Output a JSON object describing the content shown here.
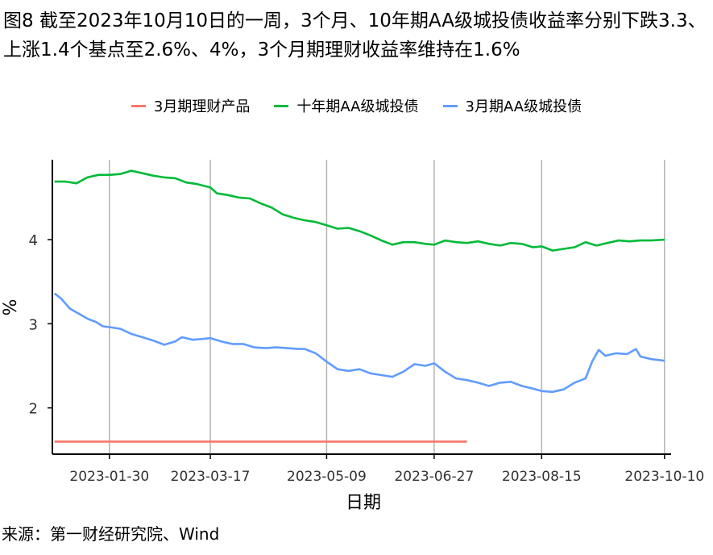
{
  "header": {
    "figure_label": "图8",
    "title": "截至2023年10月10日的一周，3个月、10年期AA级城投债收益率分别下跌3.3、 上涨1.4个基点至2.6%、4%，3个月期理财收益率维持在1.6%"
  },
  "footer": {
    "source": "来源：第一财经研究院、Wind"
  },
  "chart_data": {
    "type": "line",
    "title": "截至2023年10月10日的一周，3个月、10年期AA级城投债收益率分别下跌3.3、 上涨1.4个基点至2.6%、4%，3个月期理财收益率维持在1.6%",
    "xlabel": "日期",
    "ylabel": "%",
    "x_ticks": [
      "2023-01-30",
      "2023-03-17",
      "2023-05-09",
      "2023-06-27",
      "2023-08-15",
      "2023-10-10"
    ],
    "y_ticks": [
      2,
      3,
      4
    ],
    "xlim": [
      "2023-01-04",
      "2023-10-13"
    ],
    "ylim": [
      1.45,
      4.95
    ],
    "grid": "vertical at x ticks",
    "legend": "top",
    "series": [
      {
        "name": "3月期理财产品",
        "color": "#f8766d",
        "points": [
          [
            "2023-01-05",
            1.6
          ],
          [
            "2023-07-12",
            1.6
          ]
        ]
      },
      {
        "name": "十年期AA级城投债",
        "color": "#00ba38",
        "points": [
          [
            "2023-01-05",
            4.69
          ],
          [
            "2023-01-10",
            4.69
          ],
          [
            "2023-01-15",
            4.67
          ],
          [
            "2023-01-20",
            4.74
          ],
          [
            "2023-01-25",
            4.77
          ],
          [
            "2023-01-30",
            4.77
          ],
          [
            "2023-02-04",
            4.78
          ],
          [
            "2023-02-09",
            4.82
          ],
          [
            "2023-02-14",
            4.79
          ],
          [
            "2023-02-19",
            4.76
          ],
          [
            "2023-02-24",
            4.74
          ],
          [
            "2023-03-01",
            4.73
          ],
          [
            "2023-03-06",
            4.68
          ],
          [
            "2023-03-11",
            4.66
          ],
          [
            "2023-03-17",
            4.62
          ],
          [
            "2023-03-20",
            4.55
          ],
          [
            "2023-03-25",
            4.53
          ],
          [
            "2023-03-30",
            4.5
          ],
          [
            "2023-04-04",
            4.49
          ],
          [
            "2023-04-09",
            4.43
          ],
          [
            "2023-04-14",
            4.38
          ],
          [
            "2023-04-19",
            4.3
          ],
          [
            "2023-04-24",
            4.26
          ],
          [
            "2023-04-29",
            4.23
          ],
          [
            "2023-05-04",
            4.21
          ],
          [
            "2023-05-09",
            4.17
          ],
          [
            "2023-05-14",
            4.13
          ],
          [
            "2023-05-19",
            4.14
          ],
          [
            "2023-05-24",
            4.1
          ],
          [
            "2023-05-29",
            4.05
          ],
          [
            "2023-06-03",
            3.99
          ],
          [
            "2023-06-08",
            3.94
          ],
          [
            "2023-06-13",
            3.97
          ],
          [
            "2023-06-18",
            3.97
          ],
          [
            "2023-06-23",
            3.95
          ],
          [
            "2023-06-27",
            3.94
          ],
          [
            "2023-07-02",
            3.99
          ],
          [
            "2023-07-07",
            3.97
          ],
          [
            "2023-07-12",
            3.96
          ],
          [
            "2023-07-17",
            3.98
          ],
          [
            "2023-07-22",
            3.95
          ],
          [
            "2023-07-27",
            3.93
          ],
          [
            "2023-08-01",
            3.96
          ],
          [
            "2023-08-06",
            3.95
          ],
          [
            "2023-08-11",
            3.91
          ],
          [
            "2023-08-15",
            3.92
          ],
          [
            "2023-08-20",
            3.87
          ],
          [
            "2023-08-25",
            3.89
          ],
          [
            "2023-08-30",
            3.91
          ],
          [
            "2023-09-04",
            3.97
          ],
          [
            "2023-09-09",
            3.93
          ],
          [
            "2023-09-14",
            3.96
          ],
          [
            "2023-09-19",
            3.99
          ],
          [
            "2023-09-24",
            3.98
          ],
          [
            "2023-09-29",
            3.99
          ],
          [
            "2023-10-04",
            3.99
          ],
          [
            "2023-10-10",
            4.0
          ]
        ]
      },
      {
        "name": "3月期AA级城投债",
        "color": "#619cff",
        "points": [
          [
            "2023-01-05",
            3.36
          ],
          [
            "2023-01-08",
            3.3
          ],
          [
            "2023-01-12",
            3.18
          ],
          [
            "2023-01-16",
            3.12
          ],
          [
            "2023-01-20",
            3.06
          ],
          [
            "2023-01-24",
            3.02
          ],
          [
            "2023-01-27",
            2.97
          ],
          [
            "2023-01-30",
            2.96
          ],
          [
            "2023-02-04",
            2.94
          ],
          [
            "2023-02-09",
            2.88
          ],
          [
            "2023-02-14",
            2.84
          ],
          [
            "2023-02-19",
            2.8
          ],
          [
            "2023-02-24",
            2.75
          ],
          [
            "2023-03-01",
            2.79
          ],
          [
            "2023-03-04",
            2.84
          ],
          [
            "2023-03-09",
            2.81
          ],
          [
            "2023-03-14",
            2.82
          ],
          [
            "2023-03-17",
            2.83
          ],
          [
            "2023-03-22",
            2.79
          ],
          [
            "2023-03-27",
            2.76
          ],
          [
            "2023-04-01",
            2.76
          ],
          [
            "2023-04-06",
            2.72
          ],
          [
            "2023-04-11",
            2.71
          ],
          [
            "2023-04-16",
            2.72
          ],
          [
            "2023-04-21",
            2.71
          ],
          [
            "2023-04-26",
            2.7
          ],
          [
            "2023-04-29",
            2.7
          ],
          [
            "2023-05-04",
            2.65
          ],
          [
            "2023-05-09",
            2.55
          ],
          [
            "2023-05-14",
            2.46
          ],
          [
            "2023-05-19",
            2.44
          ],
          [
            "2023-05-24",
            2.46
          ],
          [
            "2023-05-29",
            2.41
          ],
          [
            "2023-06-03",
            2.39
          ],
          [
            "2023-06-08",
            2.37
          ],
          [
            "2023-06-13",
            2.43
          ],
          [
            "2023-06-18",
            2.52
          ],
          [
            "2023-06-23",
            2.5
          ],
          [
            "2023-06-27",
            2.53
          ],
          [
            "2023-07-02",
            2.43
          ],
          [
            "2023-07-07",
            2.35
          ],
          [
            "2023-07-12",
            2.33
          ],
          [
            "2023-07-17",
            2.3
          ],
          [
            "2023-07-22",
            2.26
          ],
          [
            "2023-07-27",
            2.3
          ],
          [
            "2023-08-01",
            2.31
          ],
          [
            "2023-08-06",
            2.26
          ],
          [
            "2023-08-11",
            2.23
          ],
          [
            "2023-08-15",
            2.2
          ],
          [
            "2023-08-20",
            2.19
          ],
          [
            "2023-08-25",
            2.22
          ],
          [
            "2023-08-30",
            2.3
          ],
          [
            "2023-09-04",
            2.35
          ],
          [
            "2023-09-07",
            2.55
          ],
          [
            "2023-09-10",
            2.69
          ],
          [
            "2023-09-13",
            2.62
          ],
          [
            "2023-09-18",
            2.65
          ],
          [
            "2023-09-23",
            2.64
          ],
          [
            "2023-09-27",
            2.7
          ],
          [
            "2023-09-29",
            2.61
          ],
          [
            "2023-10-04",
            2.58
          ],
          [
            "2023-10-10",
            2.56
          ]
        ]
      }
    ]
  }
}
